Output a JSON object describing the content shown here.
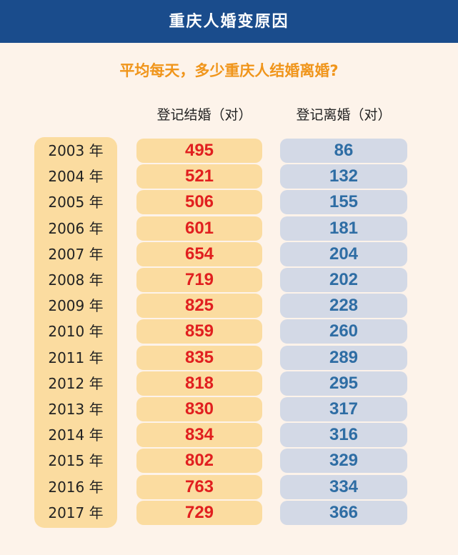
{
  "header": {
    "title": "重庆人婚变原因"
  },
  "subtitle": "平均每天，多少重庆人结婚离婚?",
  "colors": {
    "header_bg": "#1a4c8c",
    "marriage_text": "#e11f1f",
    "divorce_text": "#2e6da4",
    "marriage_bg": "#fbdca0",
    "divorce_bg": "#d3d9e6",
    "subtitle": "#f0951b"
  },
  "chart_data": {
    "type": "table",
    "title": "平均每天，多少重庆人结婚离婚?",
    "columns": [
      "登记结婚（对）",
      "登记离婚（对）"
    ],
    "year_suffix": "年",
    "rows": [
      {
        "year": "2003",
        "marriage": 495,
        "divorce": 86
      },
      {
        "year": "2004",
        "marriage": 521,
        "divorce": 132
      },
      {
        "year": "2005",
        "marriage": 506,
        "divorce": 155
      },
      {
        "year": "2006",
        "marriage": 601,
        "divorce": 181
      },
      {
        "year": "2007",
        "marriage": 654,
        "divorce": 204
      },
      {
        "year": "2008",
        "marriage": 719,
        "divorce": 202
      },
      {
        "year": "2009",
        "marriage": 825,
        "divorce": 228
      },
      {
        "year": "2010",
        "marriage": 859,
        "divorce": 260
      },
      {
        "year": "2011",
        "marriage": 835,
        "divorce": 289
      },
      {
        "year": "2012",
        "marriage": 818,
        "divorce": 295
      },
      {
        "year": "2013",
        "marriage": 830,
        "divorce": 317
      },
      {
        "year": "2014",
        "marriage": 834,
        "divorce": 316
      },
      {
        "year": "2015",
        "marriage": 802,
        "divorce": 329
      },
      {
        "year": "2016",
        "marriage": 763,
        "divorce": 334
      },
      {
        "year": "2017",
        "marriage": 729,
        "divorce": 366
      }
    ]
  }
}
